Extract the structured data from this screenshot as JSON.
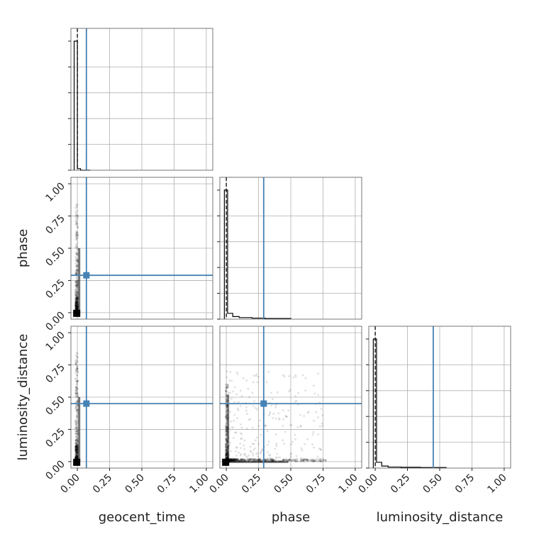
{
  "chart_data": {
    "type": "corner",
    "parameters": [
      "geocent_time",
      "phase",
      "luminosity_distance"
    ],
    "axis_range": [
      -0.05,
      1.05
    ],
    "tick_labels": [
      "0.00",
      "0.25",
      "0.50",
      "0.75",
      "1.00"
    ],
    "tick_values": [
      0,
      0.25,
      0.5,
      0.75,
      1.0
    ],
    "grid": true,
    "truths": {
      "geocent_time": 0.07,
      "phase": 0.29,
      "luminosity_distance": 0.45
    },
    "truth_color": "#4682b4",
    "sample_color": "#000000",
    "median_lines": {
      "geocent_time": 0.0,
      "phase": 0.0,
      "luminosity_distance": 0.0
    },
    "histograms": {
      "geocent_time": {
        "bin_edges": [
          -0.025,
          0.0,
          0.025,
          0.05,
          0.075,
          0.1
        ],
        "heights": [
          1.0,
          0.012,
          0.0,
          0.0,
          0.0
        ]
      },
      "phase": {
        "bin_edges": [
          -0.015,
          0.01,
          0.05,
          0.1,
          0.2,
          0.3,
          0.5
        ],
        "heights": [
          1.0,
          0.045,
          0.02,
          0.012,
          0.008,
          0.005
        ]
      },
      "luminosity_distance": {
        "bin_edges": [
          -0.015,
          0.01,
          0.05,
          0.1,
          0.2,
          0.35,
          0.55
        ],
        "heights": [
          1.0,
          0.045,
          0.016,
          0.008,
          0.006,
          0.004
        ]
      }
    },
    "scatter_2d": [
      {
        "x": "geocent_time",
        "y": "phase",
        "peak": [
          -0.005,
          -0.005
        ],
        "spread_note": "tight near origin"
      },
      {
        "x": "geocent_time",
        "y": "luminosity_distance",
        "peak": [
          -0.005,
          -0.005
        ]
      },
      {
        "x": "phase",
        "y": "luminosity_distance",
        "peak": [
          -0.005,
          -0.005
        ]
      }
    ]
  }
}
